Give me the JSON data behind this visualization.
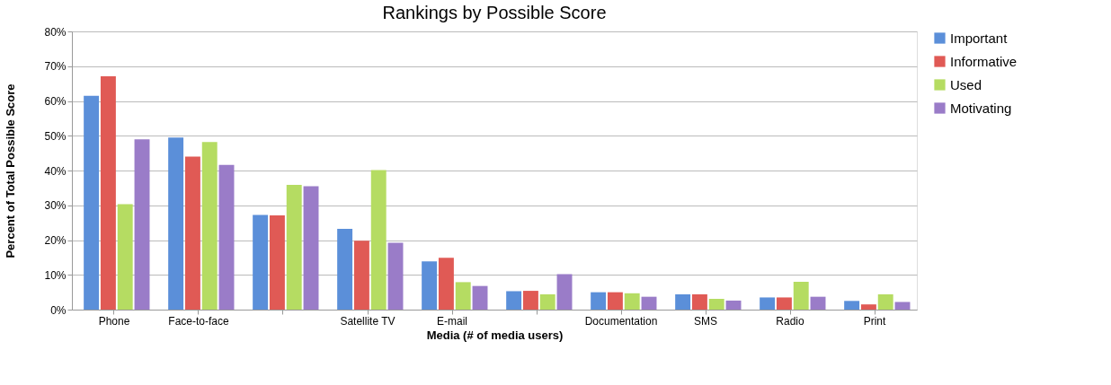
{
  "chart_data": {
    "type": "bar",
    "title": "Rankings by Possible Score",
    "xlabel": "Media (# of media users)",
    "ylabel": "Percent of Total Possible Score",
    "categories": [
      "Phone",
      "Face-to-face",
      null,
      "Satellite TV",
      "E-mail",
      null,
      "Documentation",
      "SMS",
      "Radio",
      "Print"
    ],
    "series": [
      {
        "name": "Important",
        "color": "#5b8fd9",
        "values": [
          61.5,
          49.5,
          27.2,
          23.2,
          13.9,
          5.3,
          5.0,
          4.4,
          3.5,
          2.5
        ]
      },
      {
        "name": "Informative",
        "color": "#e05a55",
        "values": [
          67.1,
          44.0,
          27.1,
          19.8,
          14.9,
          5.4,
          5.0,
          4.4,
          3.5,
          1.5
        ]
      },
      {
        "name": "Used",
        "color": "#b5dc62",
        "values": [
          30.3,
          48.2,
          35.9,
          40.1,
          7.9,
          4.4,
          4.7,
          3.1,
          8.0,
          4.4
        ]
      },
      {
        "name": "Motivating",
        "color": "#9a7cc8",
        "values": [
          49.0,
          41.6,
          35.5,
          19.2,
          6.8,
          10.2,
          3.7,
          2.6,
          3.7,
          2.2
        ]
      }
    ],
    "ylim": [
      0,
      80
    ],
    "yticks": [
      {
        "value": 0,
        "label": "0%"
      },
      {
        "value": 10,
        "label": "10%"
      },
      {
        "value": 20,
        "label": "20%"
      },
      {
        "value": 30,
        "label": "30%"
      },
      {
        "value": 40,
        "label": "40%"
      },
      {
        "value": 50,
        "label": "50%"
      },
      {
        "value": 60,
        "label": "60%"
      },
      {
        "value": 70,
        "label": "70%"
      },
      {
        "value": 80,
        "label": "80%"
      }
    ],
    "grid": "y",
    "legend": "right"
  }
}
